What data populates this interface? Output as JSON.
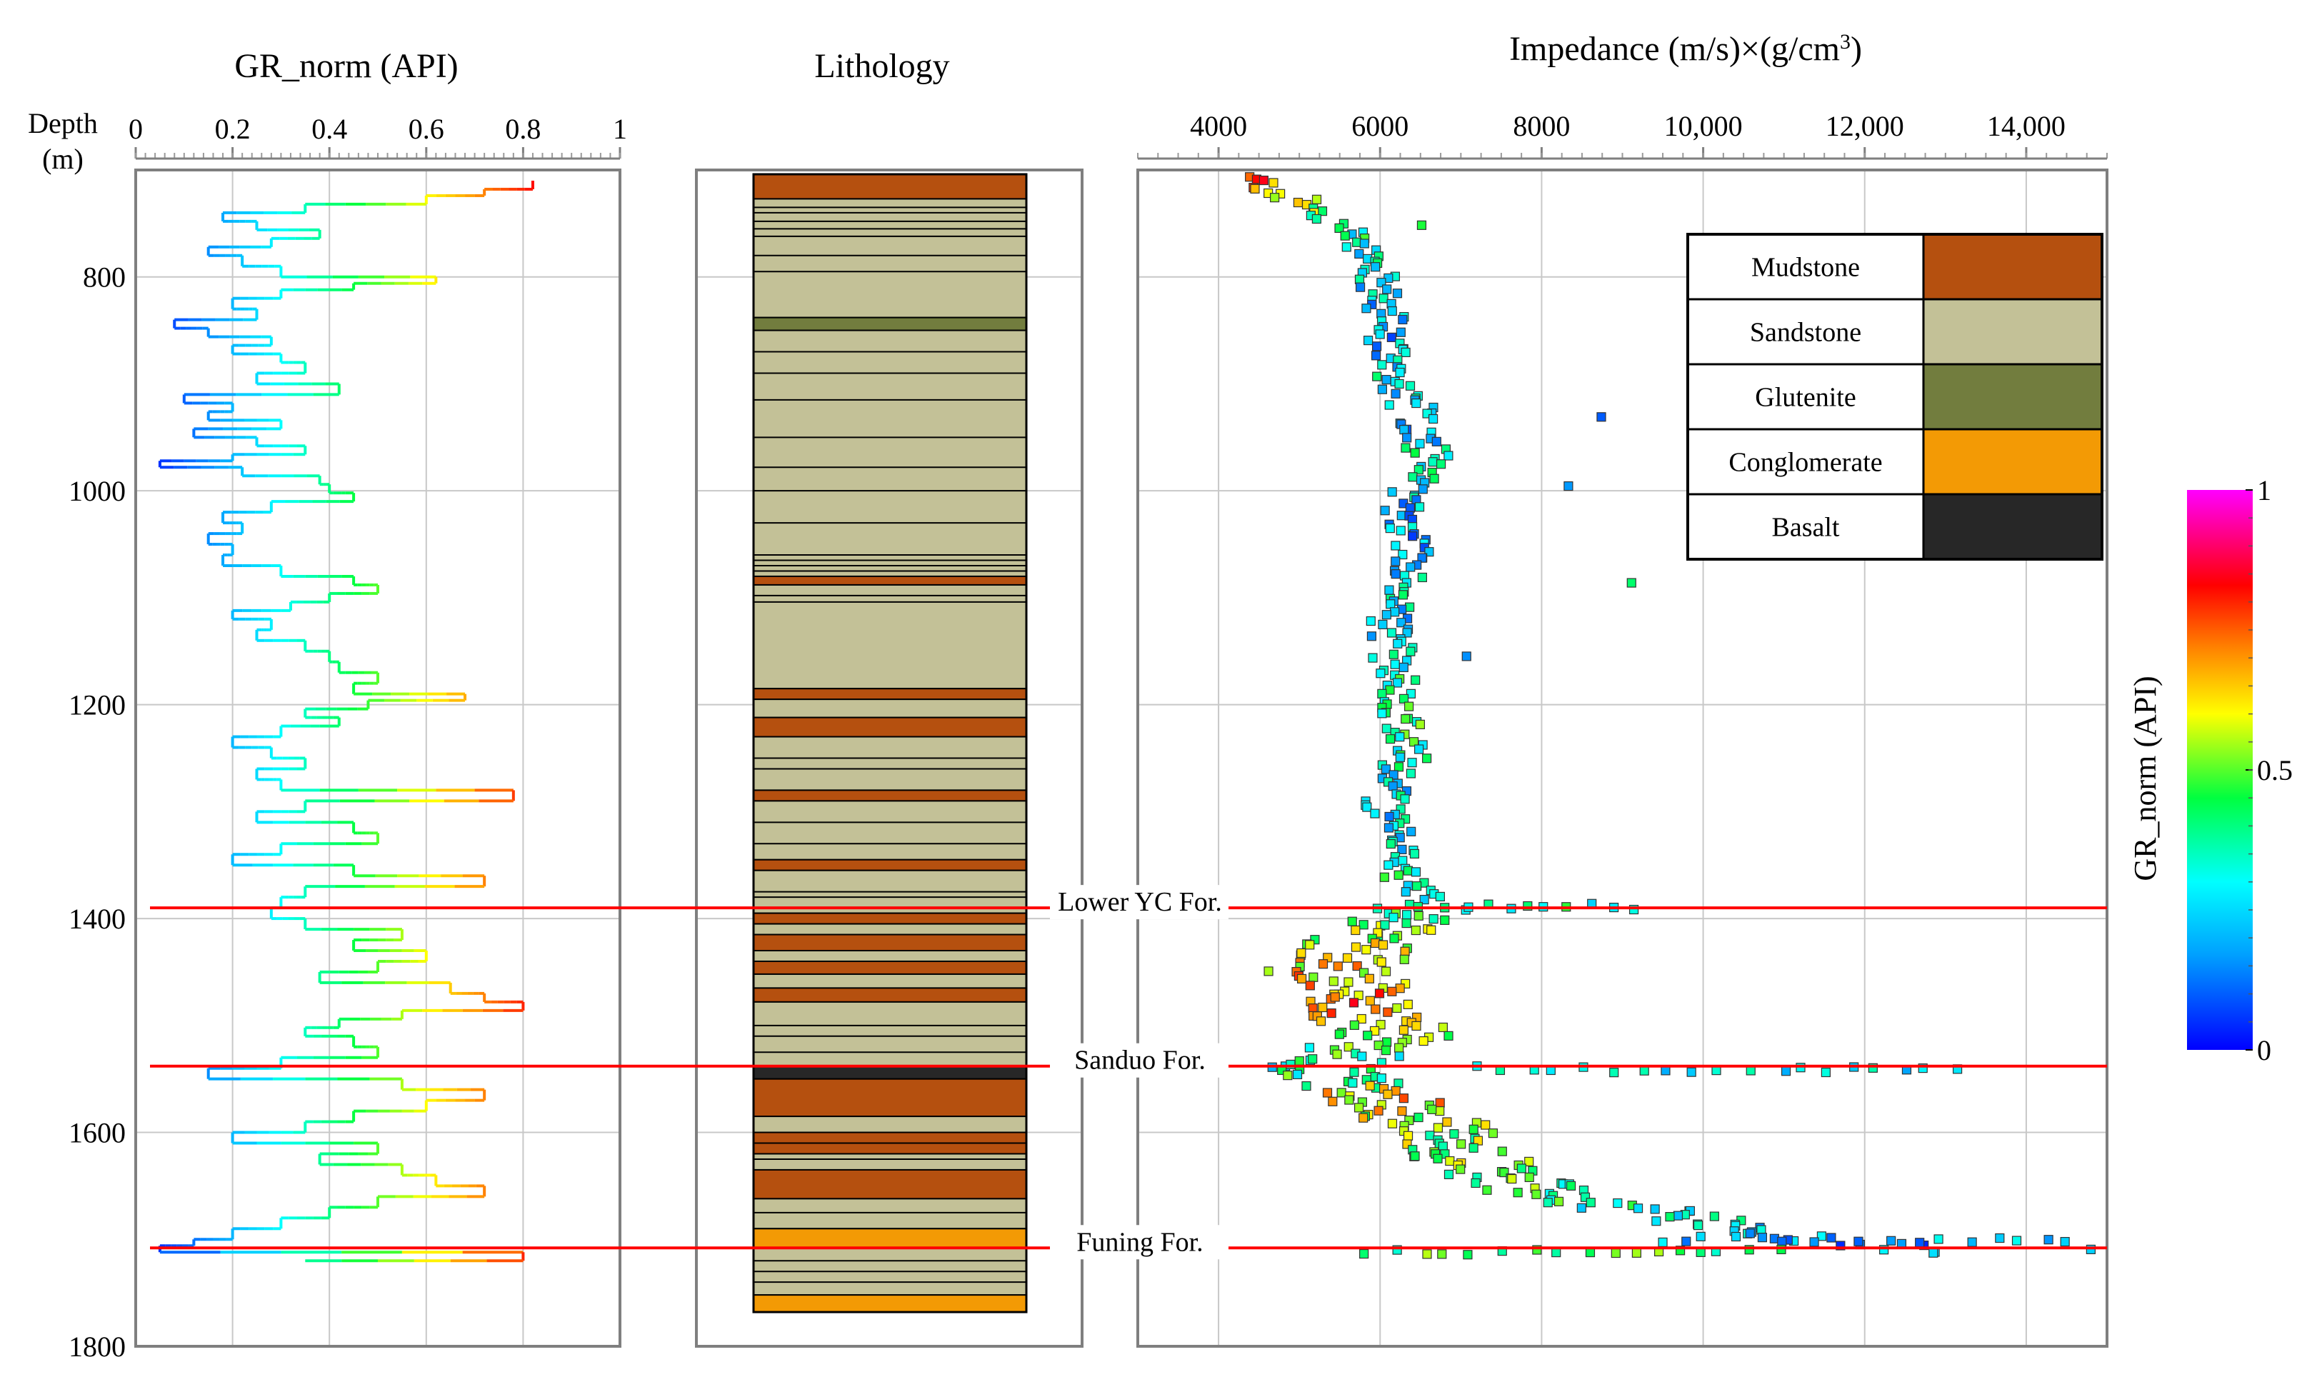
{
  "chart_data": [
    {
      "type": "line",
      "title": "GR_norm (API)",
      "ylabel": "Depth (m)",
      "ylabel_lines": [
        "Depth",
        "(m)"
      ],
      "xlim": [
        0,
        1
      ],
      "ylim": [
        700,
        1800
      ],
      "x_ticks": [
        "0",
        "0.2",
        "0.4",
        "0.6",
        "0.8",
        "1"
      ],
      "x_tick_values": [
        0,
        0.2,
        0.4,
        0.6,
        0.8,
        1
      ],
      "y_ticks": [
        "800",
        "1000",
        "1200",
        "1400",
        "1600",
        "1800"
      ],
      "y_tick_values": [
        800,
        1000,
        1200,
        1400,
        1600,
        1800
      ],
      "grid": true,
      "series": [
        {
          "name": "GR_norm",
          "depth": [
            710,
            718,
            724,
            732,
            740,
            748,
            756,
            764,
            772,
            780,
            790,
            800,
            806,
            812,
            820,
            830,
            840,
            848,
            856,
            864,
            872,
            880,
            890,
            900,
            910,
            918,
            926,
            934,
            942,
            950,
            958,
            966,
            972,
            978,
            986,
            994,
            1002,
            1010,
            1020,
            1030,
            1040,
            1050,
            1060,
            1070,
            1080,
            1088,
            1096,
            1104,
            1112,
            1120,
            1130,
            1140,
            1150,
            1160,
            1170,
            1180,
            1190,
            1196,
            1204,
            1212,
            1220,
            1230,
            1240,
            1250,
            1260,
            1270,
            1280,
            1290,
            1300,
            1310,
            1320,
            1330,
            1340,
            1350,
            1360,
            1370,
            1380,
            1390,
            1400,
            1410,
            1420,
            1430,
            1440,
            1450,
            1460,
            1470,
            1478,
            1486,
            1494,
            1502,
            1510,
            1520,
            1530,
            1540,
            1550,
            1560,
            1570,
            1580,
            1590,
            1600,
            1610,
            1620,
            1630,
            1640,
            1650,
            1660,
            1670,
            1680,
            1690,
            1700,
            1706,
            1712,
            1720
          ],
          "values": [
            0.82,
            0.72,
            0.6,
            0.35,
            0.18,
            0.25,
            0.38,
            0.28,
            0.15,
            0.22,
            0.3,
            0.62,
            0.45,
            0.3,
            0.2,
            0.25,
            0.08,
            0.15,
            0.28,
            0.2,
            0.3,
            0.35,
            0.25,
            0.42,
            0.1,
            0.2,
            0.15,
            0.3,
            0.12,
            0.25,
            0.35,
            0.2,
            0.05,
            0.22,
            0.38,
            0.4,
            0.45,
            0.28,
            0.18,
            0.22,
            0.15,
            0.2,
            0.18,
            0.3,
            0.45,
            0.5,
            0.4,
            0.32,
            0.2,
            0.28,
            0.25,
            0.35,
            0.4,
            0.42,
            0.5,
            0.45,
            0.68,
            0.48,
            0.35,
            0.42,
            0.3,
            0.2,
            0.28,
            0.35,
            0.25,
            0.3,
            0.78,
            0.35,
            0.25,
            0.45,
            0.5,
            0.3,
            0.2,
            0.45,
            0.72,
            0.35,
            0.3,
            0.28,
            0.35,
            0.55,
            0.45,
            0.6,
            0.5,
            0.38,
            0.65,
            0.72,
            0.8,
            0.55,
            0.42,
            0.35,
            0.45,
            0.5,
            0.3,
            0.15,
            0.55,
            0.72,
            0.6,
            0.45,
            0.35,
            0.2,
            0.5,
            0.38,
            0.55,
            0.62,
            0.72,
            0.5,
            0.4,
            0.3,
            0.2,
            0.12,
            0.05,
            0.8,
            0.35
          ]
        }
      ],
      "formation_tops": [
        {
          "name": "Lower YC For.",
          "depth": 1390
        },
        {
          "name": "Sanduo For.",
          "depth": 1538
        },
        {
          "name": "Funing For.",
          "depth": 1708
        }
      ]
    },
    {
      "type": "table",
      "title": "Lithology",
      "ylim": [
        700,
        1800
      ],
      "intervals": [
        {
          "top": 704,
          "base": 727,
          "lith": "Mudstone"
        },
        {
          "top": 727,
          "base": 838,
          "lith": "Sandstone"
        },
        {
          "top": 838,
          "base": 850,
          "lith": "Glutenite"
        },
        {
          "top": 850,
          "base": 1080,
          "lith": "Sandstone"
        },
        {
          "top": 1080,
          "base": 1088,
          "lith": "Mudstone"
        },
        {
          "top": 1088,
          "base": 1185,
          "lith": "Sandstone"
        },
        {
          "top": 1185,
          "base": 1195,
          "lith": "Mudstone"
        },
        {
          "top": 1195,
          "base": 1212,
          "lith": "Sandstone"
        },
        {
          "top": 1212,
          "base": 1230,
          "lith": "Mudstone"
        },
        {
          "top": 1230,
          "base": 1280,
          "lith": "Sandstone"
        },
        {
          "top": 1280,
          "base": 1290,
          "lith": "Mudstone"
        },
        {
          "top": 1290,
          "base": 1345,
          "lith": "Sandstone"
        },
        {
          "top": 1345,
          "base": 1355,
          "lith": "Mudstone"
        },
        {
          "top": 1355,
          "base": 1395,
          "lith": "Sandstone"
        },
        {
          "top": 1395,
          "base": 1405,
          "lith": "Mudstone"
        },
        {
          "top": 1405,
          "base": 1415,
          "lith": "Sandstone"
        },
        {
          "top": 1415,
          "base": 1430,
          "lith": "Mudstone"
        },
        {
          "top": 1430,
          "base": 1440,
          "lith": "Sandstone"
        },
        {
          "top": 1440,
          "base": 1452,
          "lith": "Mudstone"
        },
        {
          "top": 1452,
          "base": 1465,
          "lith": "Sandstone"
        },
        {
          "top": 1465,
          "base": 1478,
          "lith": "Mudstone"
        },
        {
          "top": 1478,
          "base": 1538,
          "lith": "Sandstone"
        },
        {
          "top": 1538,
          "base": 1550,
          "lith": "Basalt"
        },
        {
          "top": 1550,
          "base": 1585,
          "lith": "Mudstone"
        },
        {
          "top": 1585,
          "base": 1600,
          "lith": "Sandstone"
        },
        {
          "top": 1600,
          "base": 1620,
          "lith": "Mudstone"
        },
        {
          "top": 1620,
          "base": 1635,
          "lith": "Sandstone"
        },
        {
          "top": 1635,
          "base": 1662,
          "lith": "Mudstone"
        },
        {
          "top": 1662,
          "base": 1690,
          "lith": "Sandstone"
        },
        {
          "top": 1690,
          "base": 1708,
          "lith": "Conglomerate"
        },
        {
          "top": 1708,
          "base": 1752,
          "lith": "Sandstone"
        },
        {
          "top": 1752,
          "base": 1768,
          "lith": "Conglomerate"
        }
      ],
      "boundary_depths": [
        735,
        740,
        748,
        755,
        762,
        780,
        795,
        870,
        890,
        915,
        950,
        978,
        1000,
        1030,
        1060,
        1065,
        1070,
        1075,
        1098,
        1104,
        1250,
        1260,
        1310,
        1330,
        1375,
        1380,
        1500,
        1510,
        1525,
        1610,
        1625,
        1675,
        1720,
        1730,
        1740
      ]
    },
    {
      "type": "scatter",
      "title": "Impedance  (m/s)×(g/cm³)",
      "title_parts": {
        "main": "Impedance  (m/s)×(g/cm",
        "sup": "3",
        "end": ")"
      },
      "xlim": [
        3000,
        15000
      ],
      "ylim": [
        700,
        1800
      ],
      "x_ticks": [
        "4000",
        "6000",
        "8000",
        "10,000",
        "12,000",
        "14,000"
      ],
      "x_tick_values": [
        4000,
        6000,
        8000,
        10000,
        12000,
        14000
      ],
      "grid": true,
      "colorbar": {
        "label": "GR_norm (API)",
        "ticks": [
          "0",
          "0.5",
          "1"
        ],
        "tick_values": [
          0,
          0.5,
          1
        ]
      },
      "trend": {
        "depth": [
          705,
          730,
          760,
          790,
          820,
          850,
          880,
          910,
          940,
          970,
          1000,
          1030,
          1060,
          1090,
          1120,
          1150,
          1180,
          1210,
          1240,
          1270,
          1300,
          1330,
          1360,
          1390,
          1420,
          1450,
          1480,
          1510,
          1540,
          1570,
          1600,
          1630,
          1660,
          1690,
          1708
        ],
        "impedance": [
          4300,
          5000,
          5600,
          5900,
          6000,
          6100,
          6150,
          6300,
          6500,
          6600,
          6300,
          6350,
          6400,
          6200,
          6100,
          6150,
          6200,
          6300,
          6400,
          6200,
          6000,
          6200,
          6300,
          6600,
          5800,
          5600,
          5700,
          6200,
          5200,
          6000,
          6800,
          7200,
          8200,
          10500,
          12500
        ],
        "gr": [
          0.8,
          0.55,
          0.35,
          0.3,
          0.22,
          0.18,
          0.25,
          0.3,
          0.2,
          0.35,
          0.25,
          0.22,
          0.18,
          0.3,
          0.25,
          0.28,
          0.4,
          0.45,
          0.35,
          0.3,
          0.25,
          0.3,
          0.35,
          0.35,
          0.55,
          0.65,
          0.7,
          0.5,
          0.35,
          0.65,
          0.5,
          0.5,
          0.4,
          0.25,
          0.15
        ]
      },
      "legend": {
        "placement": "top-right",
        "entries": [
          {
            "label": "Mudstone",
            "color": "#b5500f"
          },
          {
            "label": "Sandstone",
            "color": "#c3c197"
          },
          {
            "label": "Glutenite",
            "color": "#727d3e"
          },
          {
            "label": "Conglomerate",
            "color": "#f39a05"
          },
          {
            "label": "Basalt",
            "color": "#272727"
          }
        ]
      }
    }
  ]
}
